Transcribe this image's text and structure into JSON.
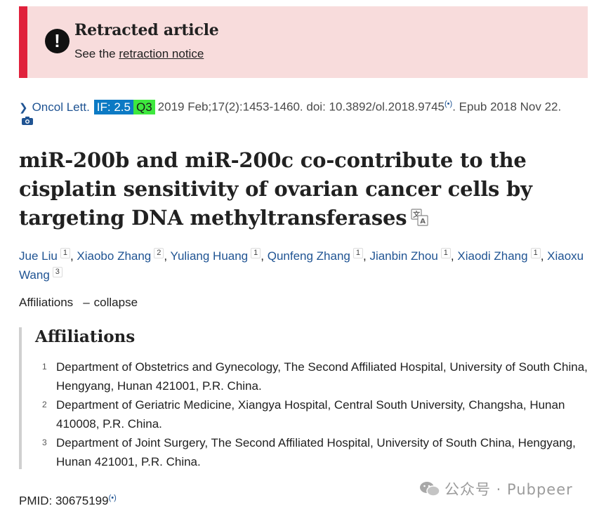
{
  "banner": {
    "title": "Retracted article",
    "sub_prefix": "See the ",
    "sub_link": "retraction notice"
  },
  "citation": {
    "journal": "Oncol Lett.",
    "if_badge": "IF: 2.5",
    "quartile": "Q3",
    "date_pages": "2019 Feb;17(2):1453-1460. doi: 10.3892/ol.2018.9745",
    "epub": ". Epub 2018 Nov 22."
  },
  "title": "miR-200b and miR-200c co-contribute to the cisplatin sensitivity of ovarian cancer cells by targeting DNA methyltransferases",
  "authors": [
    {
      "name": "Jue Liu",
      "aff": "1"
    },
    {
      "name": "Xiaobo Zhang",
      "aff": "2"
    },
    {
      "name": "Yuliang Huang",
      "aff": "1"
    },
    {
      "name": "Qunfeng Zhang",
      "aff": "1"
    },
    {
      "name": "Jianbin Zhou",
      "aff": "1"
    },
    {
      "name": "Xiaodi Zhang",
      "aff": "1"
    },
    {
      "name": "Xiaoxu Wang",
      "aff": "3"
    }
  ],
  "affiliations_toggle": {
    "label": "Affiliations",
    "dash": "–",
    "action": "collapse"
  },
  "affiliations": {
    "heading": "Affiliations",
    "items": [
      {
        "num": "1",
        "text": "Department of Obstetrics and Gynecology, The Second Affiliated Hospital, University of South China, Hengyang, Hunan 421001, P.R. China."
      },
      {
        "num": "2",
        "text": "Department of Geriatric Medicine, Xiangya Hospital, Central South University, Changsha, Hunan 410008, P.R. China."
      },
      {
        "num": "3",
        "text": "Department of Joint Surgery, The Second Affiliated Hospital, University of South China, Hengyang, Hunan 421001, P.R. China."
      }
    ]
  },
  "pmid": "PMID: 30675199",
  "watermark": "公众号 · Pubpeer",
  "icons": {
    "alert": "exclamation-circle-icon",
    "chevron": "chevron-right-icon",
    "camera": "camera-icon",
    "translate": "translate-icon",
    "signal": "broadcast-icon",
    "wechat": "wechat-icon"
  },
  "colors": {
    "banner_bg": "#f8dcdc",
    "banner_accent": "#e0213b",
    "link": "#205493",
    "if_badge": "#0c7ac4",
    "quartile_badge": "#3ee83e"
  }
}
